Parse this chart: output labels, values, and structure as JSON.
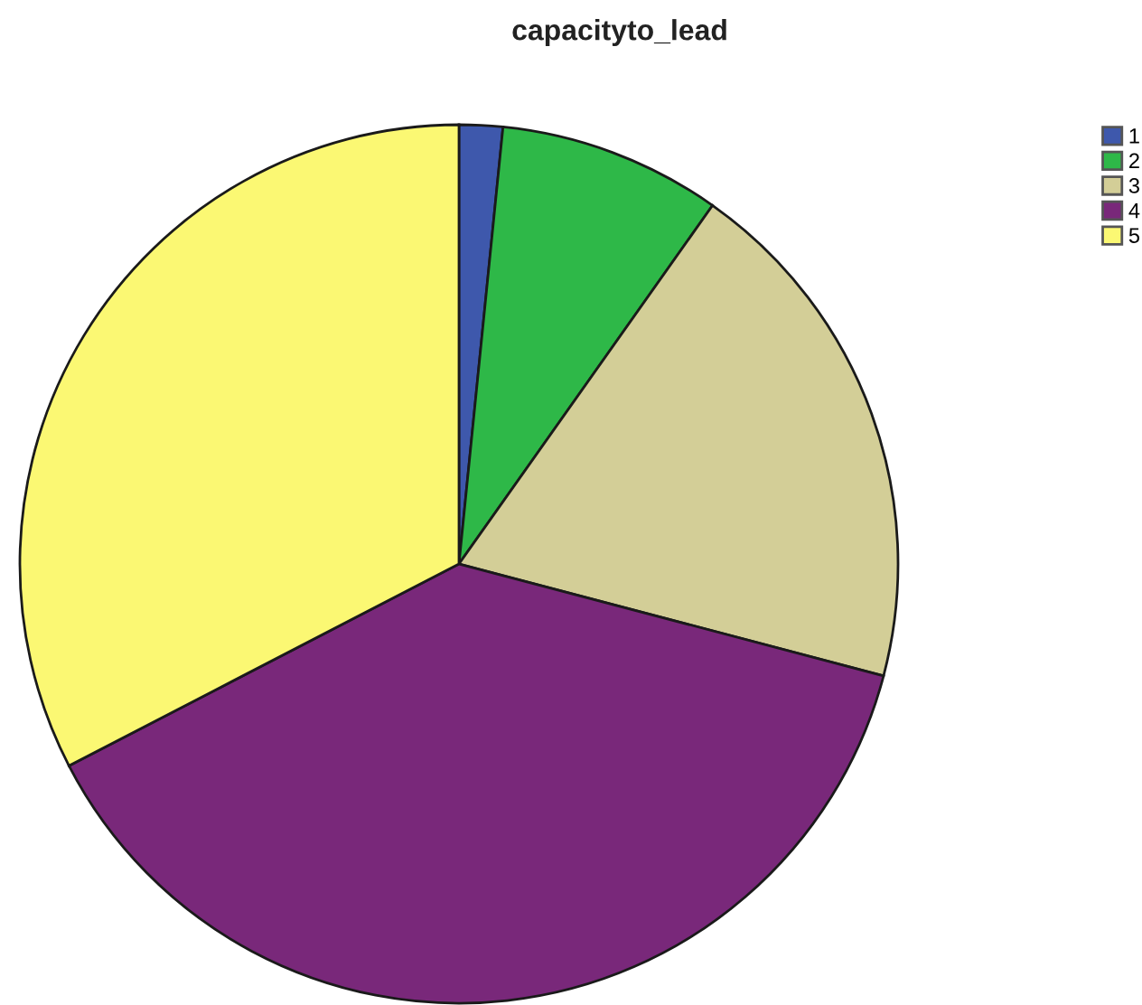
{
  "chart_data": {
    "type": "pie",
    "title": "capacityto_lead",
    "categories": [
      "1",
      "2",
      "3",
      "4",
      "5"
    ],
    "values": [
      1.6,
      8.2,
      19.3,
      38.3,
      32.6
    ],
    "colors": [
      "#3e58ac",
      "#2eb848",
      "#d3ce97",
      "#79287a",
      "#fbf873"
    ],
    "legend": "top right"
  }
}
